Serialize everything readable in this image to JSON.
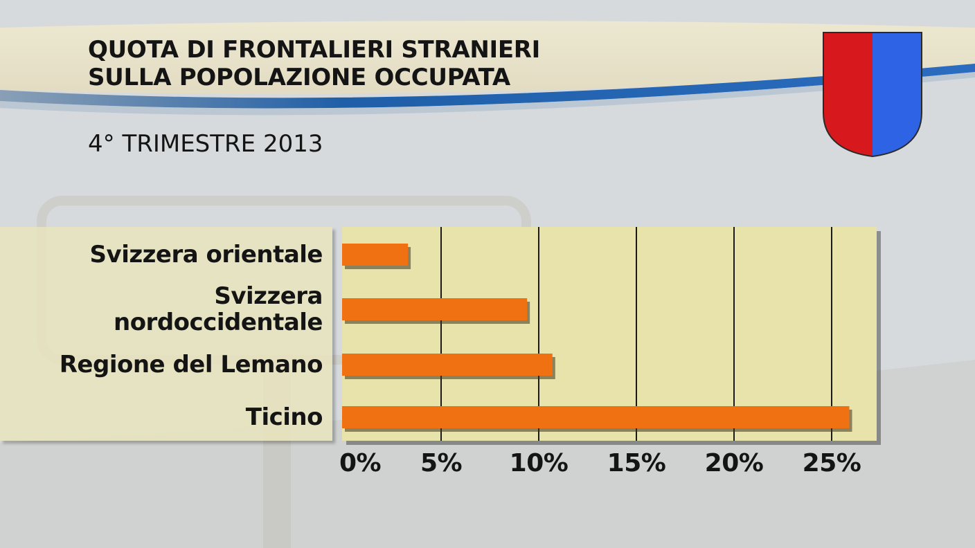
{
  "title_line1": "QUOTA DI FRONTALIERI STRANIERI",
  "title_line2": "SULLA POPOLAZIONE OCCUPATA",
  "subtitle": "4° TRIMESTRE 2013",
  "emblem": {
    "name": "ticino-coat-of-arms",
    "left_color": "#d7181c",
    "right_color": "#2f63e6"
  },
  "colors": {
    "bar": "#ef7112",
    "plot_background": "#e8e2ab",
    "gridline": "#1a1a1a",
    "ribbon": "#1f5fa8"
  },
  "chart_data": {
    "type": "bar",
    "orientation": "horizontal",
    "categories": [
      "Svizzera orientale",
      "Svizzera nordoccidentale",
      "Regione del Lemano",
      "Ticino"
    ],
    "category_labels": [
      [
        "Svizzera orientale"
      ],
      [
        "Svizzera",
        "nordoccidentale"
      ],
      [
        "Regione del Lemano"
      ],
      [
        "Ticino"
      ]
    ],
    "values": [
      3.3,
      9.4,
      10.7,
      25.9
    ],
    "xlim": [
      0,
      27.3
    ],
    "xticks": [
      0,
      5,
      10,
      15,
      20,
      25
    ],
    "xtick_labels": [
      "0%",
      "5%",
      "10%",
      "15%",
      "20%",
      "25%"
    ],
    "grid": "vertical",
    "xlabel": "",
    "ylabel": ""
  }
}
